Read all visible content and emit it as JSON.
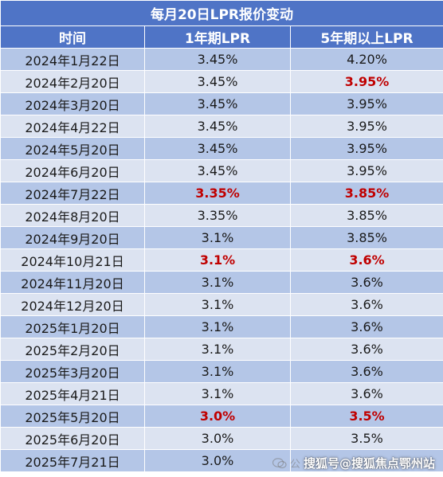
{
  "table": {
    "title": "每月20日LPR报价变动",
    "headers": [
      "时间",
      "1年期LPR",
      "5年期以上LPR"
    ],
    "rows": [
      {
        "date": "2024年1月22日",
        "lpr1y": "3.45%",
        "lpr5y": "4.20%",
        "hl1y": false,
        "hl5y": false
      },
      {
        "date": "2024年2月20日",
        "lpr1y": "3.45%",
        "lpr5y": "3.95%",
        "hl1y": false,
        "hl5y": true
      },
      {
        "date": "2024年3月20日",
        "lpr1y": "3.45%",
        "lpr5y": "3.95%",
        "hl1y": false,
        "hl5y": false
      },
      {
        "date": "2024年4月22日",
        "lpr1y": "3.45%",
        "lpr5y": "3.95%",
        "hl1y": false,
        "hl5y": false
      },
      {
        "date": "2024年5月20日",
        "lpr1y": "3.45%",
        "lpr5y": "3.95%",
        "hl1y": false,
        "hl5y": false
      },
      {
        "date": "2024年6月20日",
        "lpr1y": "3.45%",
        "lpr5y": "3.95%",
        "hl1y": false,
        "hl5y": false
      },
      {
        "date": "2024年7月22日",
        "lpr1y": "3.35%",
        "lpr5y": "3.85%",
        "hl1y": true,
        "hl5y": true
      },
      {
        "date": "2024年8月20日",
        "lpr1y": "3.35%",
        "lpr5y": "3.85%",
        "hl1y": false,
        "hl5y": false
      },
      {
        "date": "2024年9月20日",
        "lpr1y": "3.1%",
        "lpr5y": "3.85%",
        "hl1y": false,
        "hl5y": false
      },
      {
        "date": "2024年10月21日",
        "lpr1y": "3.1%",
        "lpr5y": "3.6%",
        "hl1y": true,
        "hl5y": true
      },
      {
        "date": "2024年11月20日",
        "lpr1y": "3.1%",
        "lpr5y": "3.6%",
        "hl1y": false,
        "hl5y": false
      },
      {
        "date": "2024年12月20日",
        "lpr1y": "3.1%",
        "lpr5y": "3.6%",
        "hl1y": false,
        "hl5y": false
      },
      {
        "date": "2025年1月20日",
        "lpr1y": "3.1%",
        "lpr5y": "3.6%",
        "hl1y": false,
        "hl5y": false
      },
      {
        "date": "2025年2月20日",
        "lpr1y": "3.1%",
        "lpr5y": "3.6%",
        "hl1y": false,
        "hl5y": false
      },
      {
        "date": "2025年3月20日",
        "lpr1y": "3.1%",
        "lpr5y": "3.6%",
        "hl1y": false,
        "hl5y": false
      },
      {
        "date": "2025年4月21日",
        "lpr1y": "3.1%",
        "lpr5y": "3.6%",
        "hl1y": false,
        "hl5y": false
      },
      {
        "date": "2025年5月20日",
        "lpr1y": "3.0%",
        "lpr5y": "3.5%",
        "hl1y": true,
        "hl5y": true
      },
      {
        "date": "2025年6月20日",
        "lpr1y": "3.0%",
        "lpr5y": "3.5%",
        "hl1y": false,
        "hl5y": false
      },
      {
        "date": "2025年7月21日",
        "lpr1y": "3.0%",
        "lpr5y": "",
        "hl1y": false,
        "hl5y": false
      }
    ]
  },
  "watermark": {
    "faint_text": "公",
    "text": "搜狐号@搜狐焦点鄂州站",
    "icon": "wechat-icon"
  },
  "colors": {
    "header_bg": "#4f74c6",
    "row_dark": "#b4c6e7",
    "row_light": "#dce3f1",
    "highlight": "#c00000"
  }
}
